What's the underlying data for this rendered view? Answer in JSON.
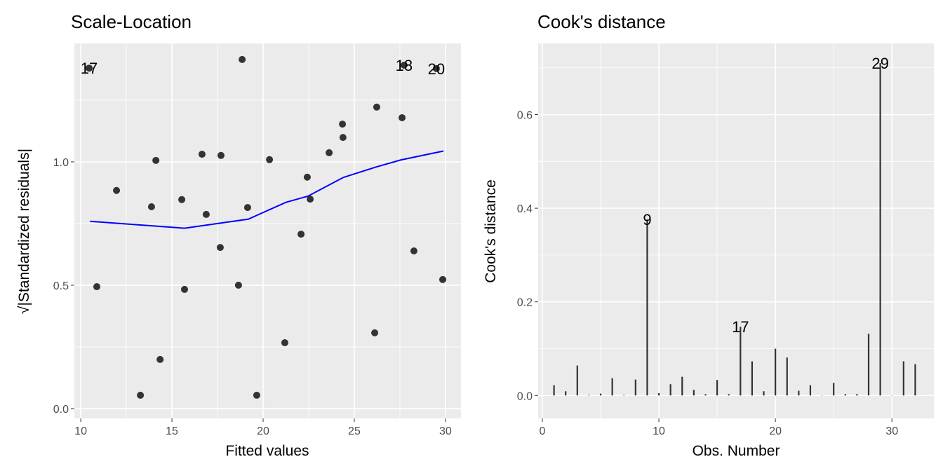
{
  "chart_data": [
    {
      "type": "scatter",
      "title": "Scale-Location",
      "xlabel": "Fitted values",
      "ylabel": "√|Standardized residuals|",
      "xlim": [
        9.65,
        30.85
      ],
      "ylim": [
        -0.04,
        1.48
      ],
      "xticks": [
        10,
        15,
        20,
        25,
        30
      ],
      "yticks": [
        0.0,
        0.5,
        1.0
      ],
      "ytick_labels": [
        "0.0",
        "0.5",
        "1.0"
      ],
      "grid": true,
      "point_color": "#333333",
      "line_color": "#0000FF",
      "points": [
        {
          "x": 10.46,
          "y": 1.38,
          "label": "17"
        },
        {
          "x": 10.88,
          "y": 0.494
        },
        {
          "x": 11.96,
          "y": 0.884
        },
        {
          "x": 13.27,
          "y": 0.054
        },
        {
          "x": 13.88,
          "y": 0.818
        },
        {
          "x": 14.12,
          "y": 1.006
        },
        {
          "x": 14.35,
          "y": 0.199
        },
        {
          "x": 15.54,
          "y": 0.847
        },
        {
          "x": 15.69,
          "y": 0.483
        },
        {
          "x": 16.65,
          "y": 1.031
        },
        {
          "x": 16.88,
          "y": 0.787
        },
        {
          "x": 17.69,
          "y": 1.026
        },
        {
          "x": 17.65,
          "y": 0.653
        },
        {
          "x": 18.65,
          "y": 0.5
        },
        {
          "x": 18.85,
          "y": 1.415
        },
        {
          "x": 19.15,
          "y": 0.815
        },
        {
          "x": 19.65,
          "y": 0.054
        },
        {
          "x": 20.35,
          "y": 1.009
        },
        {
          "x": 21.19,
          "y": 0.267
        },
        {
          "x": 22.08,
          "y": 0.707
        },
        {
          "x": 22.42,
          "y": 0.938
        },
        {
          "x": 22.58,
          "y": 0.849
        },
        {
          "x": 23.62,
          "y": 1.037
        },
        {
          "x": 24.35,
          "y": 1.153
        },
        {
          "x": 24.38,
          "y": 1.099
        },
        {
          "x": 26.23,
          "y": 1.222
        },
        {
          "x": 26.12,
          "y": 0.307
        },
        {
          "x": 27.62,
          "y": 1.179
        },
        {
          "x": 27.73,
          "y": 1.392,
          "label": "18"
        },
        {
          "x": 28.27,
          "y": 0.639
        },
        {
          "x": 29.5,
          "y": 1.378,
          "label": "20"
        },
        {
          "x": 29.85,
          "y": 0.523
        }
      ],
      "smooth_line": {
        "x": [
          10.51,
          15.69,
          19.19,
          21.25,
          22.46,
          24.4,
          26.19,
          27.56,
          29.89
        ],
        "y": [
          0.759,
          0.731,
          0.768,
          0.836,
          0.861,
          0.937,
          0.979,
          1.008,
          1.044
        ]
      }
    },
    {
      "type": "bar",
      "title": "Cook's distance",
      "xlabel": "Obs. Number",
      "ylabel": "Cook's distance",
      "xlim": [
        -0.36,
        33.6
      ],
      "ylim": [
        -0.049,
        0.752
      ],
      "xticks": [
        0,
        10,
        20,
        30
      ],
      "yticks": [
        0.0,
        0.2,
        0.4,
        0.6
      ],
      "ytick_labels": [
        "0.0",
        "0.2",
        "0.4",
        "0.6"
      ],
      "grid": true,
      "bar_color": "#333333",
      "x": [
        1,
        2,
        3,
        4,
        5,
        6,
        7,
        8,
        9,
        10,
        11,
        12,
        13,
        14,
        15,
        16,
        17,
        18,
        19,
        20,
        21,
        22,
        23,
        24,
        25,
        26,
        27,
        28,
        29,
        30,
        31,
        32
      ],
      "values": [
        0.022,
        0.009,
        0.064,
        0.001,
        0.004,
        0.037,
        0.001,
        0.034,
        0.376,
        0.005,
        0.024,
        0.04,
        0.012,
        0.003,
        0.033,
        0.003,
        0.147,
        0.073,
        0.009,
        0.1,
        0.081,
        0.01,
        0.022,
        0.0005,
        0.027,
        0.003,
        0.003,
        0.132,
        0.71,
        0.0005,
        0.073,
        0.067
      ],
      "labels": {
        "9": "9",
        "17": "17",
        "29": "29"
      }
    }
  ]
}
